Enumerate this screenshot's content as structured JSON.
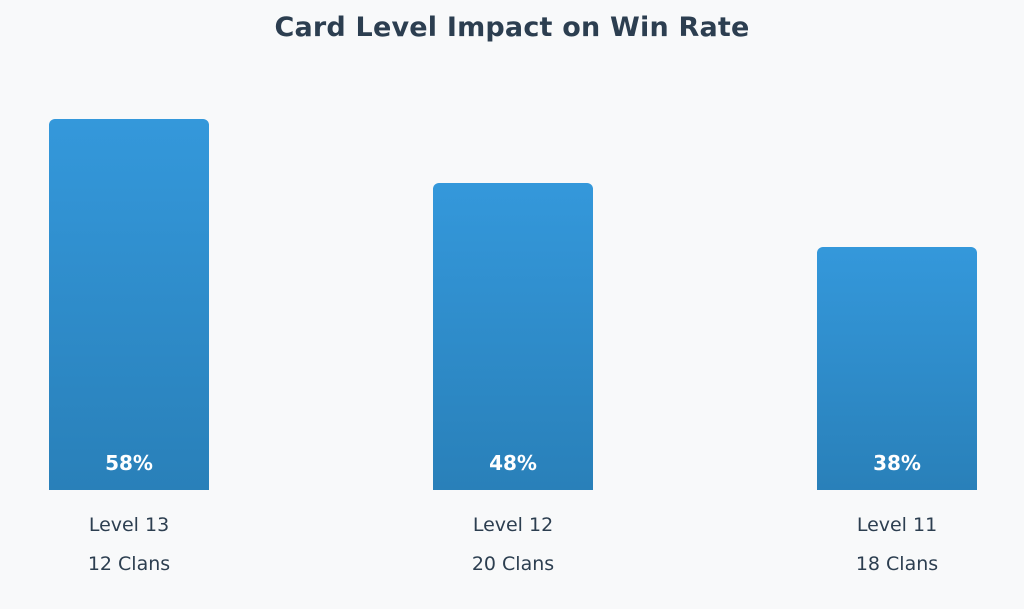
{
  "chart_data": {
    "type": "bar",
    "title": "Card Level Impact on Win Rate",
    "categories": [
      "Level 13",
      "Level 12",
      "Level 11"
    ],
    "subcategories": [
      "12 Clans",
      "20 Clans",
      "18 Clans"
    ],
    "values": [
      58,
      48,
      38
    ],
    "value_labels": [
      "58%",
      "48%",
      "38%"
    ],
    "unit": "%",
    "bar_color_top": "#3498db",
    "bar_color_bottom": "#2980b9",
    "grid": false,
    "legend": "none"
  }
}
